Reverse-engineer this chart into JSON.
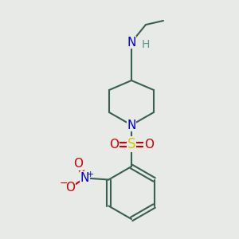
{
  "background_color": "#e8eae8",
  "atom_colors": {
    "C": "#3a6050",
    "N": "#0000cc",
    "O": "#cc0000",
    "S": "#cccc00",
    "H": "#5a9a8a"
  },
  "bond_color": "#3a6050",
  "figsize": [
    3.0,
    3.0
  ],
  "dpi": 100,
  "bond_lw": 1.5,
  "font_size": 11
}
